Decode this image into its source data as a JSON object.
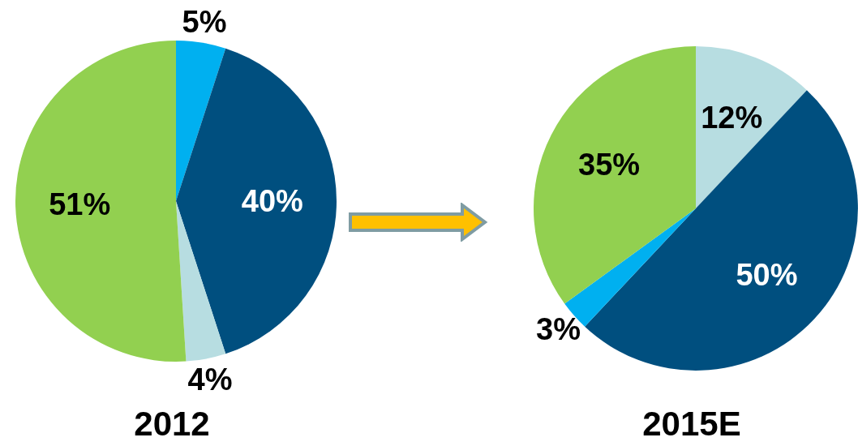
{
  "chart_data": [
    {
      "type": "pie",
      "title": "2012",
      "categories": [
        null,
        null,
        null,
        null
      ],
      "values": [
        5,
        40,
        4,
        51
      ],
      "colors": [
        "#00b0f0",
        "#004f7f",
        "#b7dde1",
        "#92d050"
      ],
      "value_labels": [
        "5%",
        "40%",
        "4%",
        "51%"
      ]
    },
    {
      "type": "pie",
      "title": "2015E",
      "categories": [
        null,
        null,
        null,
        null
      ],
      "values": [
        12,
        50,
        3,
        35
      ],
      "colors": [
        "#b7dde1",
        "#004f7f",
        "#00b0f0",
        "#92d050"
      ],
      "value_labels": [
        "12%",
        "50%",
        "3%",
        "35%"
      ]
    }
  ]
}
